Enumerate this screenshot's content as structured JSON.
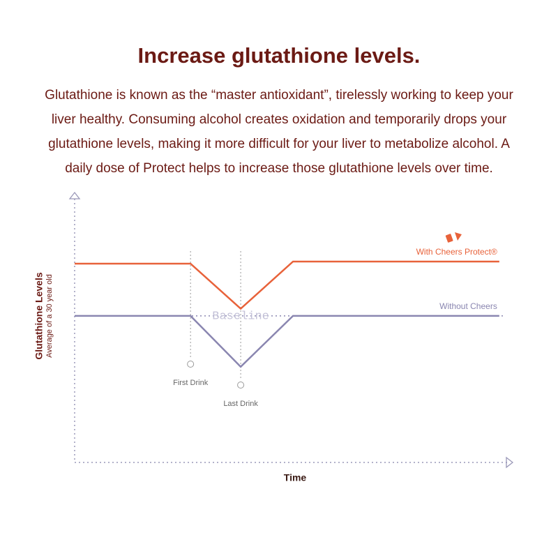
{
  "chart_data": {
    "type": "line",
    "title": "Increase glutathione levels.",
    "subtitle": "Glutathione is known as the “master antioxidant”, tirelessly working to keep your liver healthy. Consuming alcohol creates oxidation and temporarily drops your glutathione levels, making it more difficult for your liver to metabolize alcohol. A daily dose of Protect helps to increase those glutathione levels over time.",
    "y_label": "Glutathione Levels",
    "y_sublabel": "Average of a 30 year old",
    "x_label": "Time",
    "xlim": [
      0,
      100
    ],
    "ylim": [
      0,
      100
    ],
    "x": [
      0,
      26.8,
      38.4,
      50.5,
      98.2
    ],
    "series": [
      {
        "name": "With Cheers Protect®",
        "color": "#e8623a",
        "values": [
          75,
          75,
          58,
          75.8,
          75.8
        ]
      },
      {
        "name": "Without Cheers",
        "color": "#8a86b0",
        "values": [
          55.3,
          55.3,
          36.1,
          55.3,
          55.3
        ]
      }
    ],
    "baseline": {
      "label": "Baseline",
      "value": 55.3
    },
    "markers": [
      {
        "label": "First Drink",
        "x": 26.8
      },
      {
        "label": "Last Drink",
        "x": 38.4
      }
    ]
  }
}
